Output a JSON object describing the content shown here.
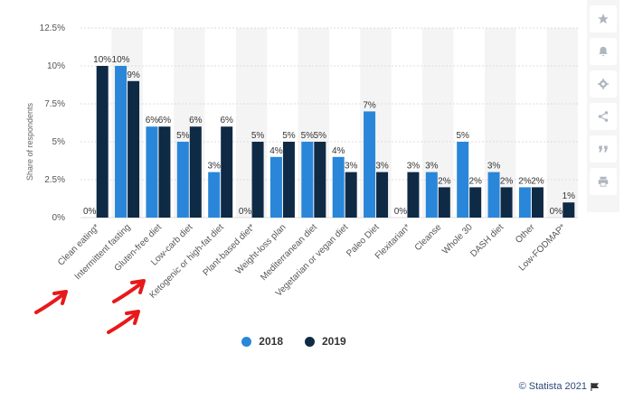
{
  "chart_data": {
    "type": "bar",
    "title": "",
    "xlabel": "",
    "ylabel": "Share of respondents",
    "ylim": [
      0,
      12.5
    ],
    "yticks": [
      "0%",
      "2.5%",
      "5%",
      "7.5%",
      "10%",
      "12.5%"
    ],
    "categories": [
      "Clean eating*",
      "Intermittent fasting",
      "Gluten-free diet",
      "Low-carb diet",
      "Ketogenic or high-fat diet",
      "Plant-based diet*",
      "Weight-loss plan",
      "Mediterranean diet",
      "Vegetarian or vegan diet",
      "Paleo Diet",
      "Flexitarian*",
      "Cleanse",
      "Whole 30",
      "DASH diet",
      "Other",
      "Low-FODMAP*"
    ],
    "series": [
      {
        "name": "2018",
        "color": "#2a86d9",
        "values": [
          0,
          10,
          6,
          5,
          3,
          0,
          4,
          5,
          4,
          7,
          0,
          3,
          5,
          3,
          2,
          0
        ],
        "labels": [
          "0%",
          "10%",
          "6%",
          "5%",
          "3%",
          "0%",
          "4%",
          "5%",
          "4%",
          "7%",
          "0%",
          "3%",
          "5%",
          "3%",
          "2%",
          "0%"
        ]
      },
      {
        "name": "2019",
        "color": "#0f2a45",
        "values": [
          10,
          9,
          6,
          6,
          6,
          5,
          5,
          5,
          3,
          3,
          3,
          2,
          2,
          2,
          2,
          1
        ],
        "labels": [
          "10%",
          "9%",
          "6%",
          "6%",
          "6%",
          "5%",
          "5%",
          "5%",
          "3%",
          "3%",
          "3%",
          "2%",
          "2%",
          "2%",
          "2%",
          "1%"
        ]
      }
    ],
    "grid": true,
    "legend": "bottom-center"
  },
  "legend": {
    "items": [
      {
        "label": "2018",
        "color": "#2a86d9"
      },
      {
        "label": "2019",
        "color": "#0f2a45"
      }
    ]
  },
  "credit": "© Statista 2021",
  "toolbar": {
    "icons": [
      "star-icon",
      "bell-icon",
      "gear-icon",
      "share-icon",
      "quote-icon",
      "print-icon"
    ]
  },
  "annotations": {
    "arrow_color": "#e8191b"
  }
}
